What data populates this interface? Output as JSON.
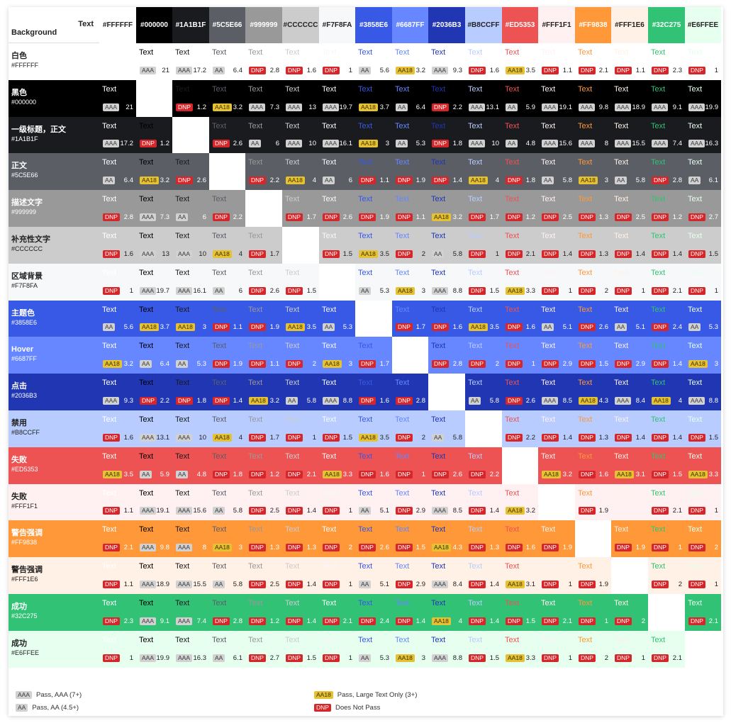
{
  "corner": {
    "top": "Text",
    "bottom": "Background"
  },
  "sample_text": "Text",
  "columns": [
    {
      "hex": "#FFFFFF",
      "label": "#FFFFFF"
    },
    {
      "hex": "#000000",
      "label": "#000000"
    },
    {
      "hex": "#1A1B1F",
      "label": "#1A1B1F"
    },
    {
      "hex": "#5C5E66",
      "label": "#5C5E66"
    },
    {
      "hex": "#999999",
      "label": "#999999"
    },
    {
      "hex": "#CCCCCC",
      "label": "#CCCCCC"
    },
    {
      "hex": "#F7F8FA",
      "label": "#F7F8FA"
    },
    {
      "hex": "#3858E6",
      "label": "#3858E6"
    },
    {
      "hex": "#6687FF",
      "label": "#6687FF"
    },
    {
      "hex": "#2036B3",
      "label": "#2036B3"
    },
    {
      "hex": "#B8CCFF",
      "label": "#B8CCFF"
    },
    {
      "hex": "#ED5353",
      "label": "#ED5353"
    },
    {
      "hex": "#FFF1F1",
      "label": "#FFF1F1"
    },
    {
      "hex": "#FF9838",
      "label": "#FF9838"
    },
    {
      "hex": "#FFF1E6",
      "label": "#FFF1E6"
    },
    {
      "hex": "#32C275",
      "label": "#32C275"
    },
    {
      "hex": "#E6FFEE",
      "label": "#E6FFEE"
    }
  ],
  "rows": [
    {
      "name": "白色",
      "code": "#FFFFFF",
      "hex": "#FFFFFF",
      "cells": [
        null,
        [
          "AAA",
          "21"
        ],
        [
          "AAA",
          "17.2"
        ],
        [
          "AA",
          "6.4"
        ],
        [
          "DNP",
          "2.8"
        ],
        [
          "DNP",
          "1.6"
        ],
        [
          "DNP",
          "1"
        ],
        [
          "AA",
          "5.6"
        ],
        [
          "AA18",
          "3.2"
        ],
        [
          "AAA",
          "9.3"
        ],
        [
          "DNP",
          "1.6"
        ],
        [
          "AA18",
          "3.5"
        ],
        [
          "DNP",
          "1.1"
        ],
        [
          "DNP",
          "2.1"
        ],
        [
          "DNP",
          "1.1"
        ],
        [
          "DNP",
          "2.3"
        ],
        [
          "DNP",
          "1"
        ]
      ]
    },
    {
      "name": "黑色",
      "code": "#000000",
      "hex": "#000000",
      "cells": [
        [
          "AAA",
          "21"
        ],
        null,
        [
          "DNP",
          "1.2"
        ],
        [
          "AA18",
          "3.2"
        ],
        [
          "AAA",
          "7.3"
        ],
        [
          "AAA",
          "13"
        ],
        [
          "AAA",
          "19.7"
        ],
        [
          "AA18",
          "3.7"
        ],
        [
          "AA",
          "6.4"
        ],
        [
          "DNP",
          "2.2"
        ],
        [
          "AAA",
          "13.1"
        ],
        [
          "AA",
          "5.9"
        ],
        [
          "AAA",
          "19.1"
        ],
        [
          "AAA",
          "9.8"
        ],
        [
          "AAA",
          "18.9"
        ],
        [
          "AAA",
          "9.1"
        ],
        [
          "AAA",
          "19.9"
        ]
      ]
    },
    {
      "name": "一级标题，正文",
      "code": "#1A1B1F",
      "hex": "#1A1B1F",
      "cells": [
        [
          "AAA",
          "17.2"
        ],
        [
          "DNP",
          "1.2"
        ],
        null,
        [
          "DNP",
          "2.6"
        ],
        [
          "AA",
          "6"
        ],
        [
          "AAA",
          "10"
        ],
        [
          "AAA",
          "16.1"
        ],
        [
          "AA18",
          "3"
        ],
        [
          "AA",
          "5.3"
        ],
        [
          "DNP",
          "1.8"
        ],
        [
          "AAA",
          "10"
        ],
        [
          "AA",
          "4.8"
        ],
        [
          "AAA",
          "15.6"
        ],
        [
          "AAA",
          "8"
        ],
        [
          "AAA",
          "15.5"
        ],
        [
          "AAA",
          "7.4"
        ],
        [
          "AAA",
          "16.3"
        ]
      ]
    },
    {
      "name": "正文",
      "code": "#5C5E66",
      "hex": "#5C5E66",
      "cells": [
        [
          "AA",
          "6.4"
        ],
        [
          "AA18",
          "3.2"
        ],
        [
          "DNP",
          "2.6"
        ],
        null,
        [
          "DNP",
          "2.2"
        ],
        [
          "AA18",
          "4"
        ],
        [
          "AA",
          "6"
        ],
        [
          "DNP",
          "1.1"
        ],
        [
          "DNP",
          "1.9"
        ],
        [
          "DNP",
          "1.4"
        ],
        [
          "AA18",
          "4"
        ],
        [
          "DNP",
          "1.8"
        ],
        [
          "AA",
          "5.8"
        ],
        [
          "AA18",
          "3"
        ],
        [
          "AA",
          "5.8"
        ],
        [
          "DNP",
          "2.8"
        ],
        [
          "AA",
          "6.1"
        ]
      ]
    },
    {
      "name": "描述文字",
      "code": "#999999",
      "hex": "#999999",
      "cells": [
        [
          "DNP",
          "2.8"
        ],
        [
          "AAA",
          "7.3"
        ],
        [
          "AA",
          "6"
        ],
        [
          "DNP",
          "2.2"
        ],
        null,
        [
          "DNP",
          "1.7"
        ],
        [
          "DNP",
          "2.6"
        ],
        [
          "DNP",
          "1.9"
        ],
        [
          "DNP",
          "1.1"
        ],
        [
          "AA18",
          "3.2"
        ],
        [
          "DNP",
          "1.7"
        ],
        [
          "DNP",
          "1.2"
        ],
        [
          "DNP",
          "2.5"
        ],
        [
          "DNP",
          "1.3"
        ],
        [
          "DNP",
          "2.5"
        ],
        [
          "DNP",
          "1.2"
        ],
        [
          "DNP",
          "2.7"
        ]
      ]
    },
    {
      "name": "补充性文字",
      "code": "#CCCCCC",
      "hex": "#CCCCCC",
      "cells": [
        [
          "DNP",
          "1.6"
        ],
        [
          "AAA",
          "13"
        ],
        [
          "AAA",
          "10"
        ],
        [
          "AA18",
          "4"
        ],
        [
          "DNP",
          "1.7"
        ],
        null,
        [
          "DNP",
          "1.5"
        ],
        [
          "AA18",
          "3.5"
        ],
        [
          "DNP",
          "2"
        ],
        [
          "AA",
          "5.8"
        ],
        [
          "DNP",
          "1"
        ],
        [
          "DNP",
          "2.1"
        ],
        [
          "DNP",
          "1.4"
        ],
        [
          "DNP",
          "1.3"
        ],
        [
          "DNP",
          "1.4"
        ],
        [
          "DNP",
          "1.4"
        ],
        [
          "DNP",
          "1.5"
        ]
      ]
    },
    {
      "name": "区域背景",
      "code": "#F7F8FA",
      "hex": "#F7F8FA",
      "cells": [
        [
          "DNP",
          "1"
        ],
        [
          "AAA",
          "19.7"
        ],
        [
          "AAA",
          "16.1"
        ],
        [
          "AA",
          "6"
        ],
        [
          "DNP",
          "2.6"
        ],
        [
          "DNP",
          "1.5"
        ],
        null,
        [
          "AA",
          "5.3"
        ],
        [
          "AA18",
          "3"
        ],
        [
          "AAA",
          "8.8"
        ],
        [
          "DNP",
          "1.5"
        ],
        [
          "AA18",
          "3.3"
        ],
        [
          "DNP",
          "1"
        ],
        [
          "DNP",
          "2"
        ],
        [
          "DNP",
          "1"
        ],
        [
          "DNP",
          "2.1"
        ],
        [
          "DNP",
          "1"
        ]
      ]
    },
    {
      "name": "主题色",
      "code": "#3858E6",
      "hex": "#3858E6",
      "cells": [
        [
          "AA",
          "5.6"
        ],
        [
          "AA18",
          "3.7"
        ],
        [
          "AA18",
          "3"
        ],
        [
          "DNP",
          "1.1"
        ],
        [
          "DNP",
          "1.9"
        ],
        [
          "AA18",
          "3.5"
        ],
        [
          "AA",
          "5.3"
        ],
        null,
        [
          "DNP",
          "1.7"
        ],
        [
          "DNP",
          "1.6"
        ],
        [
          "AA18",
          "3.5"
        ],
        [
          "DNP",
          "1.6"
        ],
        [
          "AA",
          "5.1"
        ],
        [
          "DNP",
          "2.6"
        ],
        [
          "AA",
          "5.1"
        ],
        [
          "DNP",
          "2.4"
        ],
        [
          "AA",
          "5.3"
        ]
      ]
    },
    {
      "name": "Hover",
      "code": "#6687FF",
      "hex": "#6687FF",
      "cells": [
        [
          "AA18",
          "3.2"
        ],
        [
          "AA",
          "6.4"
        ],
        [
          "AA",
          "5.3"
        ],
        [
          "DNP",
          "1.9"
        ],
        [
          "DNP",
          "1.1"
        ],
        [
          "DNP",
          "2"
        ],
        [
          "AA18",
          "3"
        ],
        [
          "DNP",
          "1.7"
        ],
        null,
        [
          "DNP",
          "2.8"
        ],
        [
          "DNP",
          "2"
        ],
        [
          "DNP",
          "1"
        ],
        [
          "DNP",
          "2.9"
        ],
        [
          "DNP",
          "1.5"
        ],
        [
          "DNP",
          "2.9"
        ],
        [
          "DNP",
          "1.4"
        ],
        [
          "AA18",
          "3"
        ]
      ]
    },
    {
      "name": "点击",
      "code": "#2036B3",
      "hex": "#2036B3",
      "cells": [
        [
          "AAA",
          "9.3"
        ],
        [
          "DNP",
          "2.2"
        ],
        [
          "DNP",
          "1.8"
        ],
        [
          "DNP",
          "1.4"
        ],
        [
          "AA18",
          "3.2"
        ],
        [
          "AA",
          "5.8"
        ],
        [
          "AAA",
          "8.8"
        ],
        [
          "DNP",
          "1.6"
        ],
        [
          "DNP",
          "2.8"
        ],
        null,
        [
          "AA",
          "5.8"
        ],
        [
          "DNP",
          "2.6"
        ],
        [
          "AAA",
          "8.5"
        ],
        [
          "AA18",
          "4.3"
        ],
        [
          "AAA",
          "8.4"
        ],
        [
          "AA18",
          "4"
        ],
        [
          "AAA",
          "8.8"
        ]
      ]
    },
    {
      "name": "禁用",
      "code": "#B8CCFF",
      "hex": "#B8CCFF",
      "cells": [
        [
          "DNP",
          "1.6"
        ],
        [
          "AAA",
          "13.1"
        ],
        [
          "AAA",
          "10"
        ],
        [
          "AA18",
          "4"
        ],
        [
          "DNP",
          "1.7"
        ],
        [
          "DNP",
          "1"
        ],
        [
          "DNP",
          "1.5"
        ],
        [
          "AA18",
          "3.5"
        ],
        [
          "DNP",
          "2"
        ],
        [
          "AA",
          "5.8"
        ],
        null,
        [
          "DNP",
          "2.2"
        ],
        [
          "DNP",
          "1.4"
        ],
        [
          "DNP",
          "1.3"
        ],
        [
          "DNP",
          "1.4"
        ],
        [
          "DNP",
          "1.4"
        ],
        [
          "DNP",
          "1.5"
        ]
      ]
    },
    {
      "name": "失败",
      "code": "#ED5353",
      "hex": "#ED5353",
      "cells": [
        [
          "AA18",
          "3.5"
        ],
        [
          "AA",
          "5.9"
        ],
        [
          "AA",
          "4.8"
        ],
        [
          "DNP",
          "1.8"
        ],
        [
          "DNP",
          "1.2"
        ],
        [
          "DNP",
          "2.1"
        ],
        [
          "AA18",
          "3.3"
        ],
        [
          "DNP",
          "1.6"
        ],
        [
          "DNP",
          "1"
        ],
        [
          "DNP",
          "2.6"
        ],
        [
          "DNP",
          "2.2"
        ],
        null,
        [
          "AA18",
          "3.2"
        ],
        [
          "DNP",
          "1.6"
        ],
        [
          "AA18",
          "3.1"
        ],
        [
          "DNP",
          "1.5"
        ],
        [
          "AA18",
          "3.3"
        ]
      ]
    },
    {
      "name": "失败",
      "code": "#FFF1F1",
      "hex": "#FFF1F1",
      "cells": [
        [
          "DNP",
          "1.1"
        ],
        [
          "AAA",
          "19.1"
        ],
        [
          "AAA",
          "15.6"
        ],
        [
          "AA",
          "5.8"
        ],
        [
          "DNP",
          "2.5"
        ],
        [
          "DNP",
          "1.4"
        ],
        [
          "DNP",
          "1"
        ],
        [
          "AA",
          "5.1"
        ],
        [
          "DNP",
          "2.9"
        ],
        [
          "AAA",
          "8.5"
        ],
        [
          "DNP",
          "1.4"
        ],
        [
          "AA18",
          "3.2"
        ],
        null,
        [
          "DNP",
          "1.9"
        ],
        null,
        [
          "DNP",
          "2.1"
        ],
        [
          "DNP",
          "1"
        ]
      ]
    },
    {
      "name": "警告强调",
      "code": "#FF9838",
      "hex": "#FF9838",
      "cells": [
        [
          "DNP",
          "2.1"
        ],
        [
          "AAA",
          "9.8"
        ],
        [
          "AAA",
          "8"
        ],
        [
          "AA18",
          "3"
        ],
        [
          "DNP",
          "1.3"
        ],
        [
          "DNP",
          "1.3"
        ],
        [
          "DNP",
          "2"
        ],
        [
          "DNP",
          "2.6"
        ],
        [
          "DNP",
          "1.5"
        ],
        [
          "AA18",
          "4.3"
        ],
        [
          "DNP",
          "1.3"
        ],
        [
          "DNP",
          "1.6"
        ],
        [
          "DNP",
          "1.9"
        ],
        null,
        [
          "DNP",
          "1.9"
        ],
        [
          "DNP",
          "1"
        ],
        [
          "DNP",
          "2"
        ]
      ]
    },
    {
      "name": "警告强调",
      "code": "#FFF1E6",
      "hex": "#FFF1E6",
      "cells": [
        [
          "DNP",
          "1.1"
        ],
        [
          "AAA",
          "18.9"
        ],
        [
          "AAA",
          "15.5"
        ],
        [
          "AA",
          "5.8"
        ],
        [
          "DNP",
          "2.5"
        ],
        [
          "DNP",
          "1.4"
        ],
        [
          "DNP",
          "1"
        ],
        [
          "AA",
          "5.1"
        ],
        [
          "DNP",
          "2.9"
        ],
        [
          "AAA",
          "8.4"
        ],
        [
          "DNP",
          "1.4"
        ],
        [
          "AA18",
          "3.1"
        ],
        [
          "DNP",
          "1"
        ],
        [
          "DNP",
          "1.9"
        ],
        null,
        [
          "DNP",
          "2"
        ],
        [
          "DNP",
          "1"
        ]
      ]
    },
    {
      "name": "成功",
      "code": "#32C275",
      "hex": "#32C275",
      "cells": [
        [
          "DNP",
          "2.3"
        ],
        [
          "AAA",
          "9.1"
        ],
        [
          "AAA",
          "7.4"
        ],
        [
          "DNP",
          "2.8"
        ],
        [
          "DNP",
          "1.2"
        ],
        [
          "DNP",
          "1.4"
        ],
        [
          "DNP",
          "2.1"
        ],
        [
          "DNP",
          "2.4"
        ],
        [
          "DNP",
          "1.4"
        ],
        [
          "AA18",
          "4"
        ],
        [
          "DNP",
          "1.4"
        ],
        [
          "DNP",
          "1.5"
        ],
        [
          "DNP",
          "2.1"
        ],
        [
          "DNP",
          "1"
        ],
        [
          "DNP",
          "2"
        ],
        null,
        [
          "DNP",
          "2.1"
        ]
      ]
    },
    {
      "name": "成功",
      "code": "#E6FFEE",
      "hex": "#E6FFEE",
      "cells": [
        [
          "DNP",
          "1"
        ],
        [
          "AAA",
          "19.9"
        ],
        [
          "AAA",
          "16.3"
        ],
        [
          "AA",
          "6.1"
        ],
        [
          "DNP",
          "2.7"
        ],
        [
          "DNP",
          "1.5"
        ],
        [
          "DNP",
          "1"
        ],
        [
          "AA",
          "5.3"
        ],
        [
          "AA18",
          "3"
        ],
        [
          "AAA",
          "8.8"
        ],
        [
          "DNP",
          "1.5"
        ],
        [
          "AA18",
          "3.3"
        ],
        [
          "DNP",
          "1"
        ],
        [
          "DNP",
          "2"
        ],
        [
          "DNP",
          "1"
        ],
        [
          "DNP",
          "2.1"
        ],
        null
      ]
    }
  ],
  "legend": [
    {
      "badge": "AAA",
      "text": "Pass, AAA (7+)"
    },
    {
      "badge": "AA",
      "text": "Pass, AA (4.5+)"
    },
    {
      "badge": "AA18",
      "text": "Pass, Large Text Only (3+)"
    },
    {
      "badge": "DNP",
      "text": "Does Not Pass"
    }
  ]
}
